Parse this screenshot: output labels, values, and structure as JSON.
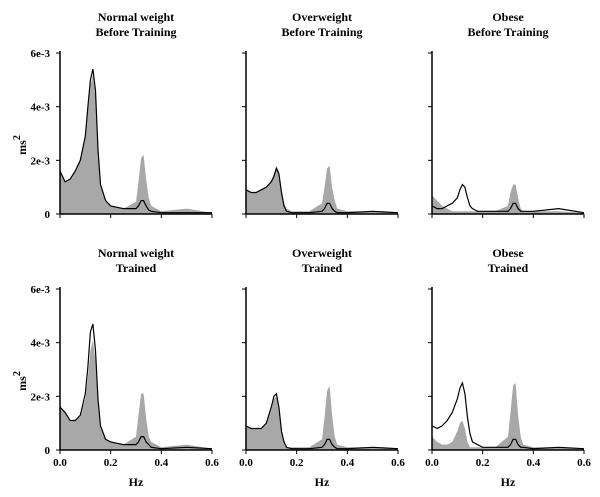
{
  "chart_data": {
    "type": "area",
    "description_fill": "gray",
    "colors": {
      "fill": "#a8a8a8",
      "line": "#000000"
    },
    "x_ticks": [
      "0.0",
      "0.2",
      "0.4",
      "0.6"
    ],
    "y_ticks": [
      "0",
      "2e-3",
      "4e-3",
      "6e-3"
    ],
    "xlim": [
      0,
      0.6
    ],
    "ylim": [
      0,
      0.006
    ],
    "xlabel": "Hz",
    "ylabel": "ms",
    "ylabel_sup": "2",
    "legend": "none",
    "grid": false,
    "panels": [
      {
        "title_line1": "Normal weight",
        "title_line2": "Before Training",
        "x": [
          0.0,
          0.02,
          0.04,
          0.06,
          0.08,
          0.1,
          0.11,
          0.12,
          0.13,
          0.14,
          0.15,
          0.16,
          0.18,
          0.2,
          0.25,
          0.3,
          0.31,
          0.32,
          0.33,
          0.34,
          0.35,
          0.36,
          0.4,
          0.5,
          0.6
        ],
        "fill_y": [
          0.0016,
          0.0012,
          0.0013,
          0.0016,
          0.002,
          0.0029,
          0.0038,
          0.0048,
          0.0052,
          0.0044,
          0.0024,
          0.0011,
          0.0005,
          0.0003,
          0.0002,
          0.00045,
          0.0012,
          0.0021,
          0.0022,
          0.0013,
          0.0006,
          0.0003,
          0.0001,
          0.0002,
          5e-05
        ],
        "line_y": [
          0.0016,
          0.0012,
          0.0013,
          0.0016,
          0.002,
          0.0029,
          0.004,
          0.005,
          0.0054,
          0.0046,
          0.0024,
          0.0011,
          0.0005,
          0.0003,
          0.0002,
          0.0002,
          0.0003,
          0.0005,
          0.0005,
          0.0003,
          0.00015,
          0.0001,
          5e-05,
          5e-05,
          5e-05
        ]
      },
      {
        "title_line1": "Overweight",
        "title_line2": "Before Training",
        "x": [
          0.0,
          0.02,
          0.04,
          0.06,
          0.08,
          0.1,
          0.11,
          0.12,
          0.13,
          0.14,
          0.15,
          0.16,
          0.18,
          0.2,
          0.25,
          0.3,
          0.31,
          0.32,
          0.33,
          0.34,
          0.35,
          0.36,
          0.4,
          0.5,
          0.6
        ],
        "fill_y": [
          0.0009,
          0.0008,
          0.0008,
          0.0009,
          0.001,
          0.0012,
          0.0015,
          0.0018,
          0.0016,
          0.0009,
          0.0004,
          0.0002,
          0.0001,
          0.0001,
          0.0001,
          0.0004,
          0.001,
          0.0017,
          0.0018,
          0.001,
          0.0005,
          0.0002,
          0.0001,
          0.0001,
          5e-05
        ],
        "line_y": [
          0.0009,
          0.0008,
          0.0008,
          0.0009,
          0.001,
          0.0012,
          0.0014,
          0.0017,
          0.0015,
          0.0008,
          0.0003,
          0.0001,
          5e-05,
          5e-05,
          5e-05,
          0.0001,
          0.0002,
          0.0004,
          0.0004,
          0.0002,
          0.0001,
          5e-05,
          5e-05,
          0.0001,
          5e-05
        ]
      },
      {
        "title_line1": "Obese",
        "title_line2": "Before Training",
        "x": [
          0.0,
          0.02,
          0.04,
          0.06,
          0.08,
          0.1,
          0.11,
          0.12,
          0.13,
          0.14,
          0.15,
          0.16,
          0.18,
          0.2,
          0.25,
          0.3,
          0.31,
          0.32,
          0.33,
          0.34,
          0.35,
          0.36,
          0.4,
          0.5,
          0.6
        ],
        "fill_y": [
          0.0007,
          0.0005,
          0.0003,
          0.0002,
          0.0001,
          0.0001,
          0.0001,
          0.0001,
          0.0001,
          0.0001,
          0.0001,
          0.0001,
          0.0001,
          0.0001,
          0.0001,
          0.0003,
          0.0008,
          0.0011,
          0.0011,
          0.0006,
          0.0002,
          0.0001,
          0.0001,
          0.0001,
          5e-05
        ],
        "line_y": [
          0.0003,
          0.0002,
          0.0002,
          0.0003,
          0.0004,
          0.0006,
          0.0009,
          0.0011,
          0.001,
          0.0006,
          0.0003,
          0.0002,
          0.0001,
          0.0001,
          0.0001,
          0.0001,
          0.0002,
          0.0004,
          0.0004,
          0.0002,
          0.0001,
          0.0001,
          0.0001,
          0.0002,
          5e-05
        ]
      },
      {
        "title_line1": "Normal weight",
        "title_line2": "Trained",
        "x": [
          0.0,
          0.02,
          0.04,
          0.06,
          0.08,
          0.1,
          0.11,
          0.12,
          0.13,
          0.14,
          0.15,
          0.16,
          0.18,
          0.2,
          0.25,
          0.3,
          0.31,
          0.32,
          0.33,
          0.34,
          0.35,
          0.36,
          0.4,
          0.5,
          0.6
        ],
        "fill_y": [
          0.0016,
          0.0014,
          0.0011,
          0.0011,
          0.0013,
          0.0019,
          0.0027,
          0.0037,
          0.0041,
          0.0033,
          0.0018,
          0.0009,
          0.0004,
          0.0003,
          0.0002,
          0.0005,
          0.0013,
          0.0021,
          0.0021,
          0.0012,
          0.0005,
          0.0003,
          0.0001,
          0.0002,
          5e-05
        ],
        "line_y": [
          0.0016,
          0.0014,
          0.0011,
          0.0011,
          0.0013,
          0.0021,
          0.0031,
          0.0044,
          0.0047,
          0.0037,
          0.0019,
          0.0009,
          0.0004,
          0.0003,
          0.0002,
          0.0002,
          0.0003,
          0.0005,
          0.0005,
          0.0003,
          0.0002,
          0.0001,
          5e-05,
          0.0001,
          5e-05
        ]
      },
      {
        "title_line1": "Overweight",
        "title_line2": "Trained",
        "x": [
          0.0,
          0.02,
          0.04,
          0.06,
          0.08,
          0.1,
          0.11,
          0.12,
          0.13,
          0.14,
          0.15,
          0.16,
          0.18,
          0.2,
          0.25,
          0.3,
          0.31,
          0.32,
          0.33,
          0.34,
          0.35,
          0.36,
          0.4,
          0.5,
          0.6
        ],
        "fill_y": [
          0.0009,
          0.0008,
          0.0008,
          0.0008,
          0.001,
          0.0015,
          0.0019,
          0.002,
          0.0015,
          0.0007,
          0.0003,
          0.0001,
          0.0001,
          0.0001,
          0.0001,
          0.0004,
          0.0012,
          0.0022,
          0.0024,
          0.0013,
          0.0005,
          0.0002,
          0.0001,
          0.0001,
          5e-05
        ],
        "line_y": [
          0.0009,
          0.0008,
          0.0008,
          0.0008,
          0.001,
          0.0016,
          0.002,
          0.0021,
          0.0016,
          0.0007,
          0.0003,
          0.0001,
          5e-05,
          5e-05,
          5e-05,
          0.0001,
          0.0002,
          0.0004,
          0.0004,
          0.0002,
          0.0001,
          5e-05,
          5e-05,
          0.0001,
          5e-05
        ]
      },
      {
        "title_line1": "Obese",
        "title_line2": "Trained",
        "x": [
          0.0,
          0.02,
          0.04,
          0.06,
          0.08,
          0.1,
          0.11,
          0.12,
          0.13,
          0.14,
          0.15,
          0.16,
          0.18,
          0.2,
          0.25,
          0.3,
          0.31,
          0.32,
          0.33,
          0.34,
          0.35,
          0.36,
          0.4,
          0.5,
          0.6
        ],
        "fill_y": [
          0.0005,
          0.0003,
          0.0002,
          0.0002,
          0.0003,
          0.0007,
          0.001,
          0.0011,
          0.0008,
          0.0003,
          0.0001,
          0.0001,
          0.0001,
          0.0001,
          0.0001,
          0.0005,
          0.0014,
          0.0024,
          0.0025,
          0.0013,
          0.0005,
          0.0002,
          0.0001,
          0.0001,
          5e-05
        ],
        "line_y": [
          0.0009,
          0.0008,
          0.0009,
          0.0011,
          0.0014,
          0.0019,
          0.0023,
          0.0025,
          0.0021,
          0.0012,
          0.0006,
          0.0003,
          0.0002,
          0.0001,
          0.0001,
          0.0001,
          0.0002,
          0.0004,
          0.0004,
          0.0002,
          0.0001,
          0.0001,
          5e-05,
          0.0001,
          5e-05
        ]
      }
    ]
  }
}
